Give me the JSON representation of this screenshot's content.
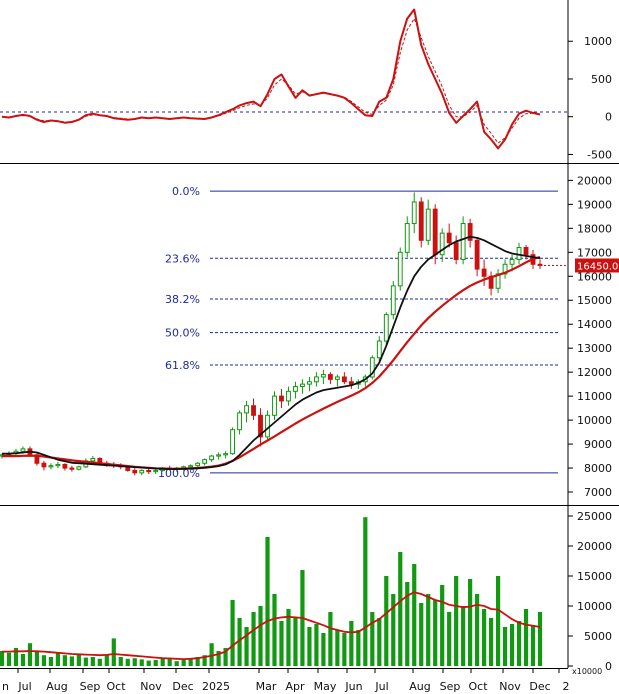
{
  "chart_data": {
    "type": "candlestick",
    "x_axis": {
      "ticks": [
        "n",
        "Jul",
        "Aug",
        "Sep",
        "Oct",
        "Nov",
        "Dec",
        "2025",
        "Mar",
        "Apr",
        "May",
        "Jun",
        "Jul",
        "Aug",
        "Sep",
        "Oct",
        "Nov",
        "Dec",
        "2"
      ]
    },
    "panels": [
      {
        "name": "oscillator",
        "type": "line",
        "y_ticks": [
          1000,
          500,
          0,
          -500
        ],
        "ylim": [
          -600,
          1520
        ],
        "zero_line": 0,
        "series": [
          {
            "color": "#cc1111",
            "style": "solid",
            "values": [
              0,
              -10,
              10,
              25,
              10,
              -40,
              -70,
              -50,
              -60,
              -80,
              -70,
              -40,
              20,
              40,
              20,
              10,
              -20,
              -30,
              -40,
              -30,
              -10,
              -20,
              -10,
              -20,
              -30,
              -20,
              -10,
              -20,
              -25,
              -30,
              -10,
              20,
              60,
              100,
              150,
              180,
              200,
              140,
              300,
              500,
              560,
              400,
              250,
              350,
              280,
              300,
              320,
              300,
              280,
              250,
              180,
              100,
              20,
              10,
              200,
              250,
              500,
              1000,
              1300,
              1420,
              950,
              700,
              500,
              300,
              50,
              -80,
              10,
              100,
              200,
              -200,
              -300,
              -420,
              -300,
              -100,
              40,
              80,
              50,
              30
            ]
          },
          {
            "color": "#cc1111",
            "style": "dashed",
            "values": [
              -5,
              -8,
              5,
              15,
              8,
              -30,
              -55,
              -50,
              -55,
              -70,
              -65,
              -45,
              5,
              25,
              20,
              10,
              -10,
              -20,
              -30,
              -30,
              -15,
              -18,
              -12,
              -18,
              -25,
              -20,
              -12,
              -18,
              -22,
              -25,
              -12,
              10,
              45,
              80,
              120,
              150,
              170,
              150,
              250,
              420,
              500,
              420,
              300,
              330,
              290,
              300,
              310,
              300,
              285,
              260,
              200,
              130,
              60,
              30,
              150,
              220,
              420,
              850,
              1150,
              1300,
              1050,
              800,
              600,
              400,
              150,
              0,
              0,
              60,
              150,
              -100,
              -220,
              -350,
              -280,
              -150,
              -20,
              40,
              45,
              35
            ]
          }
        ]
      },
      {
        "name": "price",
        "type": "candlestick",
        "y_ticks": [
          20000,
          19000,
          18000,
          17000,
          16000,
          15000,
          14000,
          13000,
          12000,
          11000,
          10000,
          9000,
          8000,
          7000
        ],
        "ylim": [
          6500,
          20600
        ],
        "last_price_label": "16450.00",
        "last_price": 16450,
        "fibonacci": [
          {
            "label": "0.0%",
            "value": 19550
          },
          {
            "label": "23.6%",
            "value": 16750
          },
          {
            "label": "38.2%",
            "value": 15050
          },
          {
            "label": "50.0%",
            "value": 13650
          },
          {
            "label": "61.8%",
            "value": 12300
          },
          {
            "label": "100.0%",
            "value": 7800
          }
        ],
        "candles": [
          [
            8500,
            8600,
            8400,
            8550
          ],
          [
            8550,
            8700,
            8450,
            8600
          ],
          [
            8600,
            8800,
            8500,
            8700
          ],
          [
            8700,
            8900,
            8600,
            8800
          ],
          [
            8800,
            8900,
            8500,
            8550
          ],
          [
            8550,
            8600,
            8100,
            8200
          ],
          [
            8200,
            8300,
            7900,
            8050
          ],
          [
            8050,
            8200,
            7950,
            8100
          ],
          [
            8100,
            8250,
            8000,
            8150
          ],
          [
            8150,
            8200,
            7900,
            8000
          ],
          [
            8000,
            8100,
            7850,
            7950
          ],
          [
            7950,
            8100,
            7900,
            8050
          ],
          [
            8050,
            8400,
            8000,
            8300
          ],
          [
            8300,
            8500,
            8200,
            8400
          ],
          [
            8400,
            8450,
            8100,
            8200
          ],
          [
            8200,
            8300,
            8050,
            8150
          ],
          [
            8150,
            8250,
            8000,
            8100
          ],
          [
            8100,
            8200,
            7950,
            8050
          ],
          [
            8050,
            8100,
            7850,
            7900
          ],
          [
            7900,
            8000,
            7700,
            7800
          ],
          [
            7800,
            7950,
            7700,
            7900
          ],
          [
            7900,
            8000,
            7750,
            7850
          ],
          [
            7850,
            7950,
            7750,
            7900
          ],
          [
            7900,
            8050,
            7850,
            8000
          ],
          [
            8000,
            8100,
            7900,
            7950
          ],
          [
            7950,
            8050,
            7850,
            8000
          ],
          [
            8000,
            8100,
            7900,
            8050
          ],
          [
            8050,
            8150,
            7950,
            8100
          ],
          [
            8100,
            8250,
            8000,
            8200
          ],
          [
            8200,
            8400,
            8100,
            8350
          ],
          [
            8350,
            8550,
            8250,
            8500
          ],
          [
            8500,
            8650,
            8350,
            8550
          ],
          [
            8550,
            8700,
            8400,
            8600
          ],
          [
            8600,
            9700,
            8550,
            9600
          ],
          [
            9600,
            10400,
            9400,
            10300
          ],
          [
            10300,
            10800,
            9900,
            10600
          ],
          [
            10600,
            10900,
            10000,
            10200
          ],
          [
            10200,
            10500,
            8900,
            9300
          ],
          [
            9300,
            10400,
            9200,
            10200
          ],
          [
            10200,
            11200,
            10000,
            11000
          ],
          [
            11000,
            11300,
            10500,
            10800
          ],
          [
            10800,
            11400,
            10600,
            11200
          ],
          [
            11200,
            11600,
            10900,
            11400
          ],
          [
            11400,
            11700,
            11100,
            11500
          ],
          [
            11500,
            11800,
            11200,
            11600
          ],
          [
            11600,
            12000,
            11400,
            11800
          ],
          [
            11800,
            12100,
            11500,
            11900
          ],
          [
            11900,
            12000,
            11500,
            11700
          ],
          [
            11700,
            11900,
            11400,
            11800
          ],
          [
            11800,
            12000,
            11500,
            11600
          ],
          [
            11600,
            11800,
            11300,
            11500
          ],
          [
            11500,
            11700,
            11300,
            11600
          ],
          [
            11600,
            11900,
            11400,
            11800
          ],
          [
            11800,
            12700,
            11700,
            12600
          ],
          [
            12600,
            13500,
            12400,
            13300
          ],
          [
            13300,
            14500,
            13100,
            14400
          ],
          [
            14400,
            15800,
            14200,
            15600
          ],
          [
            15600,
            17200,
            15400,
            17000
          ],
          [
            17000,
            18500,
            16800,
            18200
          ],
          [
            18200,
            19500,
            17800,
            19100
          ],
          [
            19100,
            19300,
            17200,
            17500
          ],
          [
            17500,
            19200,
            17300,
            18800
          ],
          [
            18800,
            19000,
            16500,
            16900
          ],
          [
            16900,
            18000,
            16600,
            17800
          ],
          [
            17800,
            18200,
            17200,
            17400
          ],
          [
            17400,
            17700,
            16500,
            16700
          ],
          [
            16700,
            18500,
            16500,
            18200
          ],
          [
            18200,
            18400,
            17200,
            17500
          ],
          [
            17500,
            17600,
            16000,
            16300
          ],
          [
            16300,
            16700,
            15600,
            16000
          ],
          [
            16000,
            16200,
            15200,
            15500
          ],
          [
            15500,
            16300,
            15300,
            16100
          ],
          [
            16100,
            16700,
            15900,
            16500
          ],
          [
            16500,
            16900,
            16200,
            16700
          ],
          [
            16700,
            17400,
            16500,
            17200
          ],
          [
            17200,
            17300,
            16700,
            16900
          ],
          [
            16900,
            17100,
            16300,
            16500
          ],
          [
            16500,
            16700,
            16300,
            16450
          ]
        ],
        "moving_averages": [
          {
            "color": "#111111",
            "values": [
              8600,
              8600,
              8620,
              8650,
              8680,
              8650,
              8550,
              8450,
              8350,
              8280,
              8220,
              8200,
              8180,
              8160,
              8140,
              8120,
              8100,
              8080,
              8060,
              8040,
              8020,
              8000,
              7980,
              7970,
              7960,
              7960,
              7965,
              7975,
              7990,
              8010,
              8040,
              8080,
              8150,
              8300,
              8550,
              8850,
              9150,
              9400,
              9650,
              9900,
              10150,
              10400,
              10650,
              10850,
              11000,
              11150,
              11250,
              11300,
              11350,
              11400,
              11450,
              11550,
              11700,
              11950,
              12400,
              13100,
              13900,
              14700,
              15400,
              16000,
              16400,
              16700,
              16900,
              17100,
              17300,
              17450,
              17550,
              17650,
              17600,
              17500,
              17350,
              17200,
              17050,
              16950,
              16900,
              16850,
              16800,
              16750
            ]
          },
          {
            "color": "#cc1111",
            "values": [
              8500,
              8500,
              8500,
              8510,
              8520,
              8510,
              8480,
              8440,
              8400,
              8360,
              8320,
              8290,
              8260,
              8230,
              8200,
              8170,
              8140,
              8110,
              8080,
              8050,
              8030,
              8010,
              7990,
              7980,
              7970,
              7970,
              7975,
              7985,
              8000,
              8030,
              8060,
              8100,
              8180,
              8300,
              8450,
              8620,
              8800,
              8980,
              9150,
              9320,
              9500,
              9680,
              9860,
              10020,
              10180,
              10330,
              10480,
              10620,
              10760,
              10890,
              11020,
              11160,
              11330,
              11550,
              11820,
              12150,
              12500,
              12880,
              13250,
              13600,
              13950,
              14250,
              14520,
              14770,
              15000,
              15220,
              15420,
              15600,
              15740,
              15860,
              15960,
              16050,
              16150,
              16280,
              16420,
              16580,
              16720,
              16800
            ]
          }
        ]
      },
      {
        "name": "volume",
        "type": "bar",
        "unit_label": "x10000",
        "y_ticks": [
          25000,
          20000,
          15000,
          10000,
          5000,
          0
        ],
        "ylim": [
          0,
          26000
        ],
        "bar_color": "#119911",
        "bar_values": [
          2500,
          2200,
          3000,
          2000,
          3800,
          2600,
          1800,
          1500,
          2200,
          1800,
          1600,
          2000,
          1400,
          1500,
          1200,
          1800,
          4600,
          1500,
          1200,
          1300,
          1100,
          900,
          1000,
          1200,
          1400,
          800,
          1000,
          1100,
          1500,
          1800,
          3800,
          2500,
          3000,
          11000,
          8000,
          6500,
          9000,
          10000,
          21500,
          12000,
          7500,
          9500,
          8000,
          16000,
          6500,
          7000,
          5500,
          9000,
          6000,
          5500,
          7500,
          6000,
          24800,
          9000,
          8000,
          15000,
          12000,
          19000,
          14000,
          17000,
          10500,
          12000,
          11000,
          13500,
          9000,
          15000,
          10000,
          14500,
          12000,
          9500,
          8000,
          15000,
          6500,
          7000,
          7500,
          9500,
          6800,
          9000
        ],
        "ma": {
          "color": "#cc1111",
          "values": [
            2400,
            2400,
            2450,
            2450,
            2500,
            2450,
            2400,
            2300,
            2200,
            2100,
            2000,
            1950,
            1900,
            1850,
            1800,
            1850,
            2000,
            1900,
            1800,
            1700,
            1600,
            1500,
            1400,
            1300,
            1250,
            1200,
            1150,
            1200,
            1300,
            1500,
            1700,
            2000,
            2400,
            3400,
            4300,
            5100,
            6000,
            6800,
            7500,
            7900,
            8100,
            8200,
            8100,
            8000,
            7600,
            7200,
            6800,
            6300,
            6000,
            5700,
            5600,
            5700,
            6400,
            7200,
            7800,
            8800,
            9800,
            10800,
            11700,
            12300,
            12000,
            11500,
            11000,
            10700,
            10200,
            10000,
            9800,
            9900,
            10200,
            10000,
            9500,
            9400,
            8600,
            7800,
            7200,
            6900,
            6700,
            6500
          ]
        }
      }
    ]
  }
}
